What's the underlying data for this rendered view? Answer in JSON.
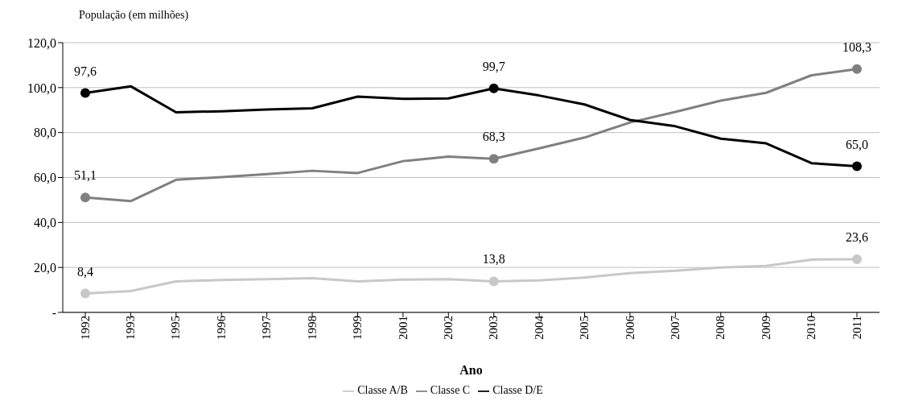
{
  "chart_data": {
    "type": "line",
    "ylabel": "População (em milhões)",
    "xlabel": "Ano",
    "categories": [
      "1992",
      "1993",
      "1995",
      "1996",
      "1997",
      "1998",
      "1999",
      "2001",
      "2002",
      "2003",
      "2004",
      "2005",
      "2006",
      "2007",
      "2008",
      "2009",
      "2010",
      "2011"
    ],
    "series": [
      {
        "name": "Classe A/B",
        "color": "#c8c8c8",
        "values": [
          8.4,
          9.5,
          13.8,
          14.4,
          14.8,
          15.2,
          13.8,
          14.6,
          14.8,
          13.8,
          14.2,
          15.5,
          17.5,
          18.5,
          20,
          20.7,
          23.5,
          23.6
        ],
        "value_labels": [
          "8,4",
          null,
          null,
          null,
          null,
          null,
          null,
          null,
          null,
          "13,8",
          null,
          null,
          null,
          null,
          null,
          null,
          null,
          "23,6"
        ]
      },
      {
        "name": "Classe C",
        "color": "#808080",
        "values": [
          51.1,
          49.5,
          59,
          60.2,
          61.5,
          63,
          62,
          67.3,
          69.3,
          68.3,
          73,
          77.8,
          84.5,
          89.2,
          94.2,
          97.7,
          105.5,
          108.3
        ],
        "value_labels": [
          "51,1",
          null,
          null,
          null,
          null,
          null,
          null,
          null,
          null,
          "68,3",
          null,
          null,
          null,
          null,
          null,
          null,
          null,
          "108,3"
        ]
      },
      {
        "name": "Classe D/E",
        "color": "#000000",
        "values": [
          97.6,
          100.6,
          89,
          89.5,
          90.3,
          90.8,
          96,
          95,
          95.2,
          99.7,
          96.5,
          92.5,
          85.6,
          82.8,
          77.3,
          75.2,
          66.4,
          65.0
        ],
        "value_labels": [
          "97,6",
          null,
          null,
          null,
          null,
          null,
          null,
          null,
          null,
          "99,7",
          null,
          null,
          null,
          null,
          null,
          null,
          null,
          "65,0"
        ]
      }
    ],
    "ylim": [
      0,
      120
    ],
    "yticks": [
      {
        "value": 0,
        "label": "-"
      },
      {
        "value": 20,
        "label": "20,0"
      },
      {
        "value": 40,
        "label": "40,0"
      },
      {
        "value": 60,
        "label": "60,0"
      },
      {
        "value": 80,
        "label": "80,0"
      },
      {
        "value": 100,
        "label": "100,0"
      },
      {
        "value": 120,
        "label": "120,0"
      }
    ],
    "grid": "y",
    "legend": "bottom",
    "line_style": "solid"
  }
}
